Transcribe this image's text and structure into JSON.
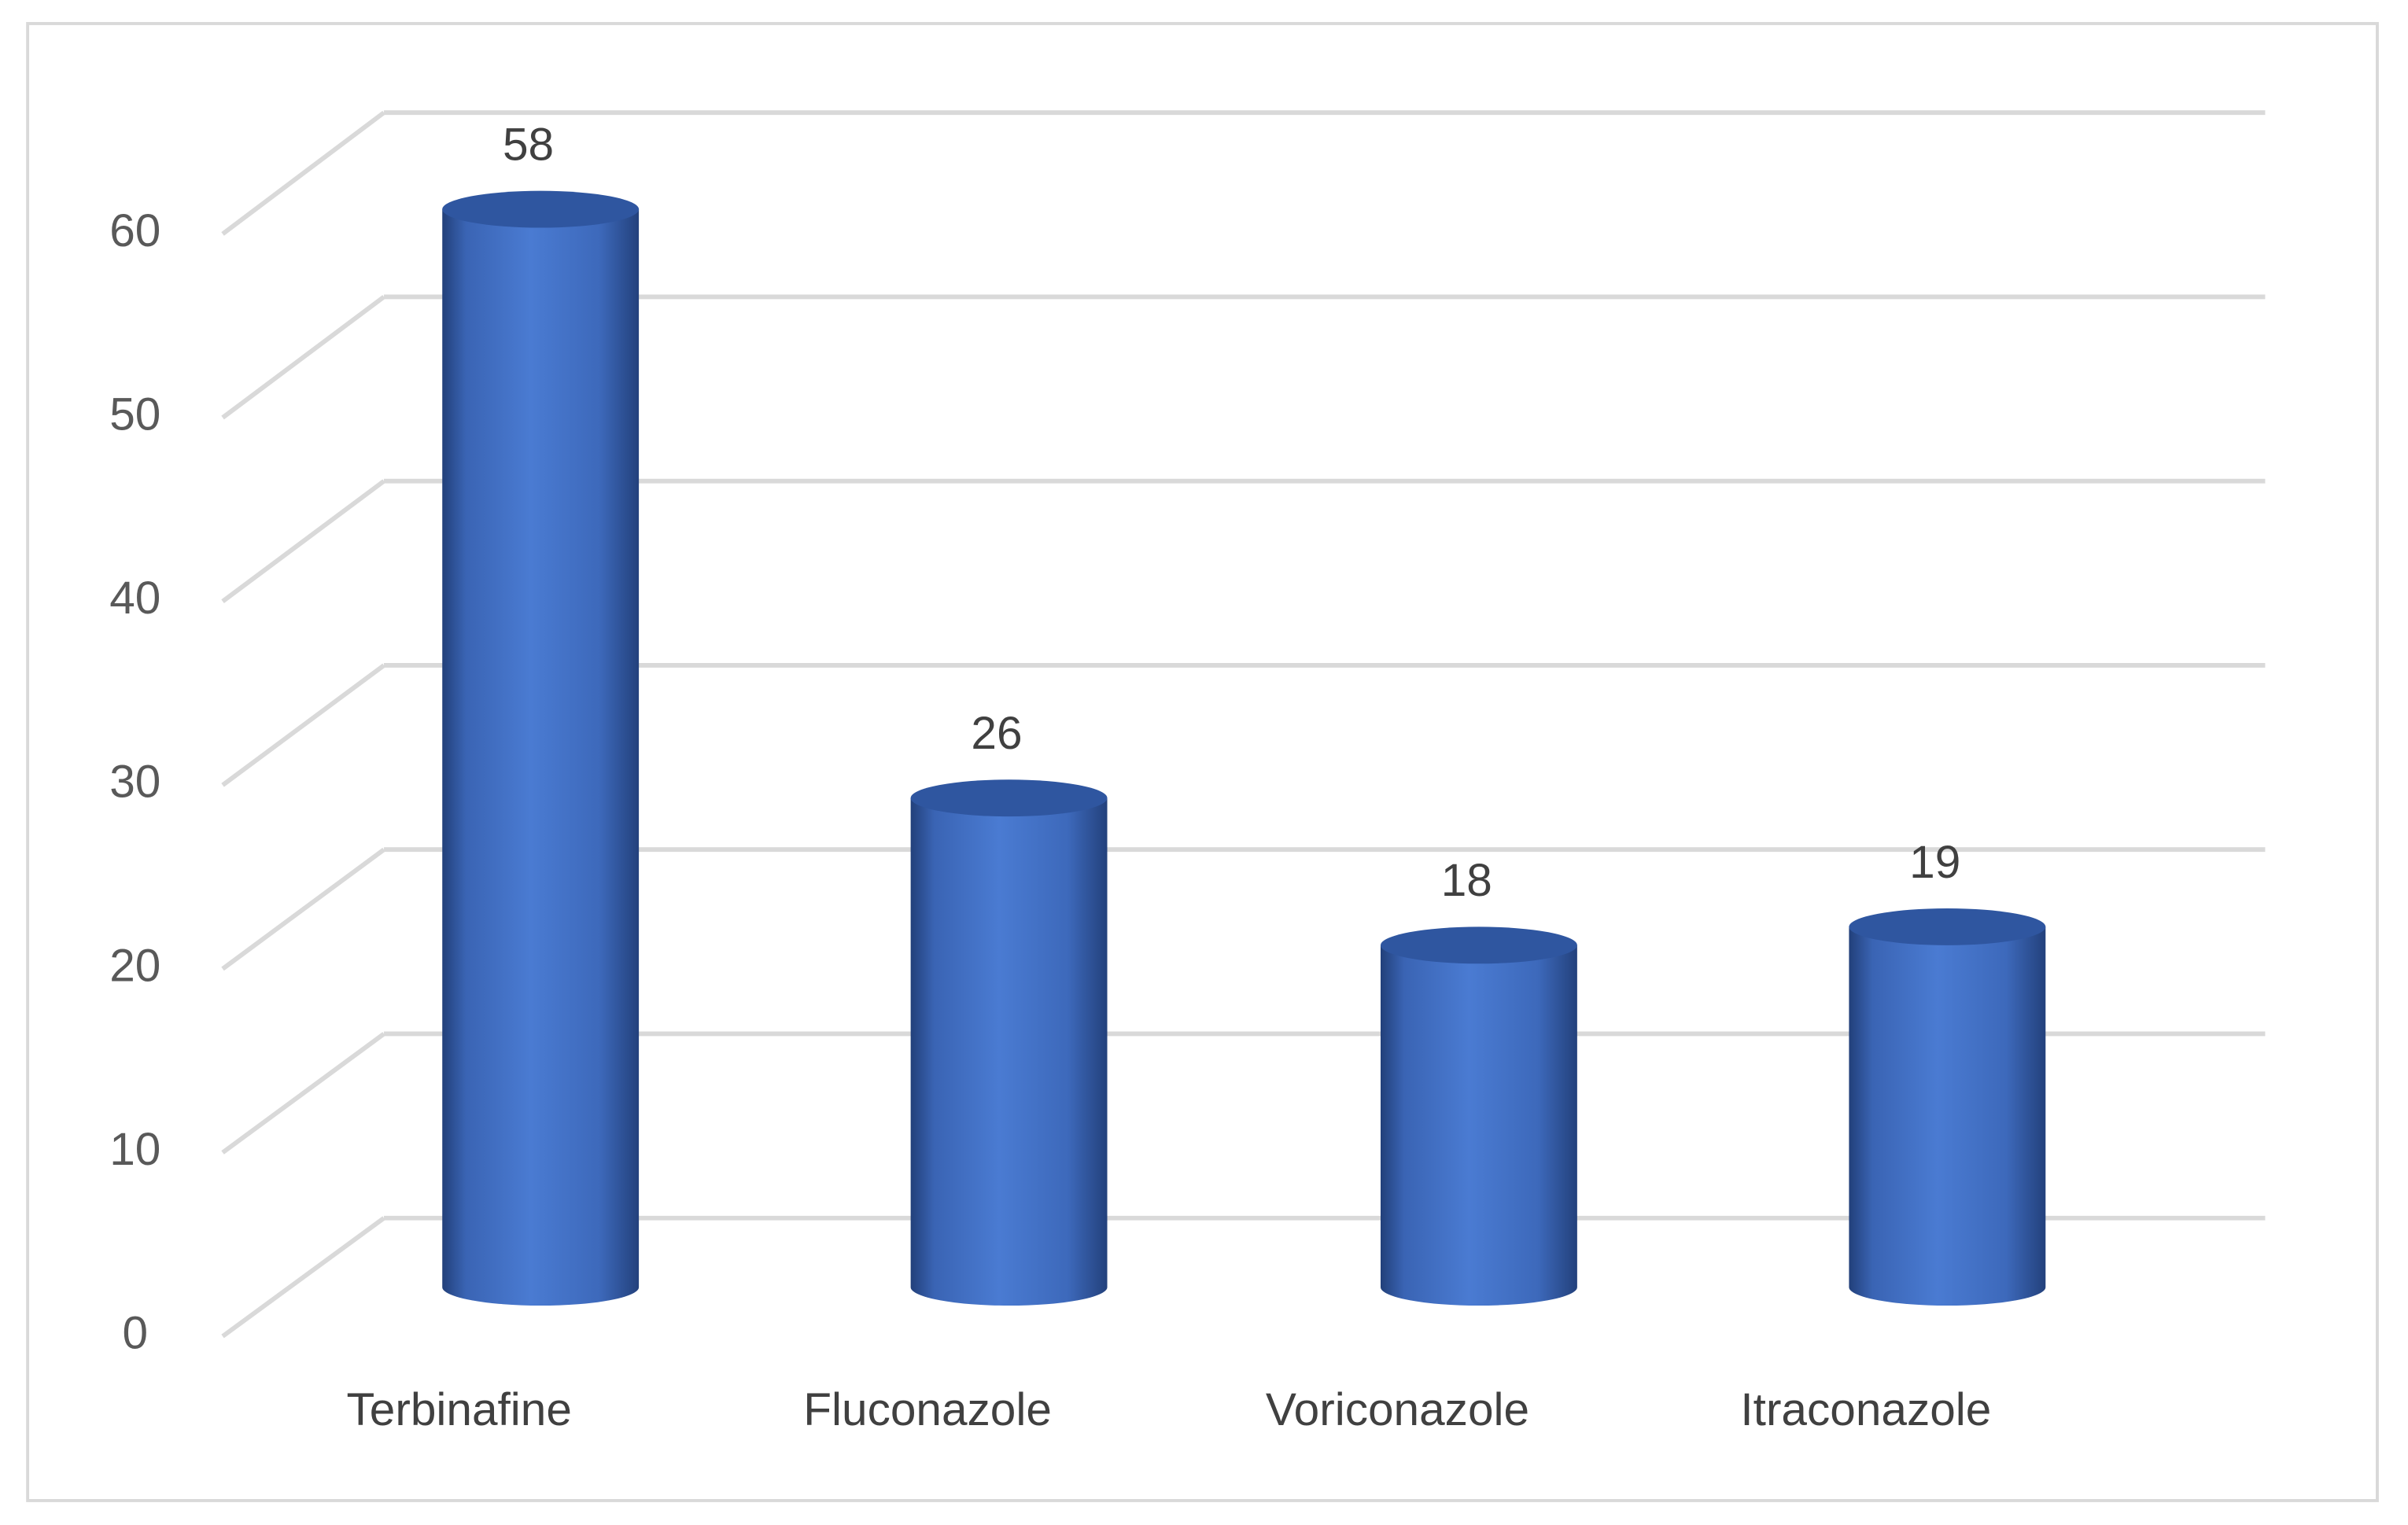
{
  "chart_data": {
    "type": "bar3d",
    "categories": [
      "Terbinafine",
      "Fluconazole",
      "Voriconazole",
      "Itraconazole"
    ],
    "values": [
      58,
      26,
      18,
      19
    ],
    "color": "#4472c4",
    "ylim": [
      0,
      60
    ],
    "yticks": [
      0,
      10,
      20,
      30,
      40,
      50,
      60
    ],
    "grid": true
  }
}
